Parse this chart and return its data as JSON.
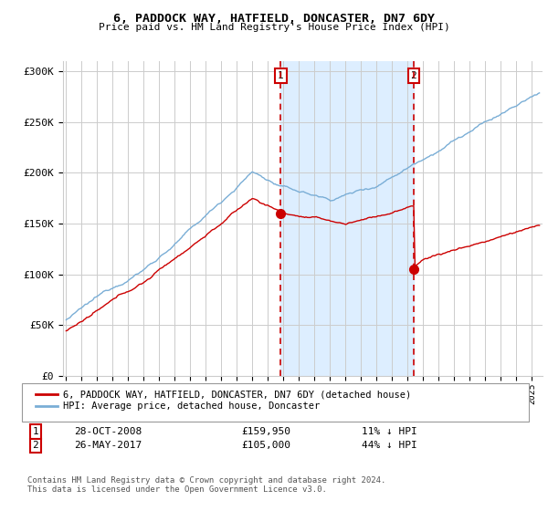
{
  "title": "6, PADDOCK WAY, HATFIELD, DONCASTER, DN7 6DY",
  "subtitle": "Price paid vs. HM Land Registry's House Price Index (HPI)",
  "ylabel_ticks": [
    "£0",
    "£50K",
    "£100K",
    "£150K",
    "£200K",
    "£250K",
    "£300K"
  ],
  "ytick_values": [
    0,
    50000,
    100000,
    150000,
    200000,
    250000,
    300000
  ],
  "ylim": [
    0,
    310000
  ],
  "xlim_start": 1994.8,
  "xlim_end": 2025.7,
  "marker1_x": 2008.83,
  "marker1_y": 159950,
  "marker2_x": 2017.4,
  "marker2_y": 105000,
  "hpi_color": "#7aaed6",
  "price_color": "#cc0000",
  "shade_color": "#ddeeff",
  "grid_color": "#cccccc",
  "bg_color": "#ffffff",
  "marker_box_color": "#cc0000",
  "footer": "Contains HM Land Registry data © Crown copyright and database right 2024.\nThis data is licensed under the Open Government Licence v3.0.",
  "legend_label1": "6, PADDOCK WAY, HATFIELD, DONCASTER, DN7 6DY (detached house)",
  "legend_label2": "HPI: Average price, detached house, Doncaster",
  "marker1_date": "28-OCT-2008",
  "marker1_price": "£159,950",
  "marker1_hpi": "11% ↓ HPI",
  "marker2_date": "26-MAY-2017",
  "marker2_price": "£105,000",
  "marker2_hpi": "44% ↓ HPI"
}
